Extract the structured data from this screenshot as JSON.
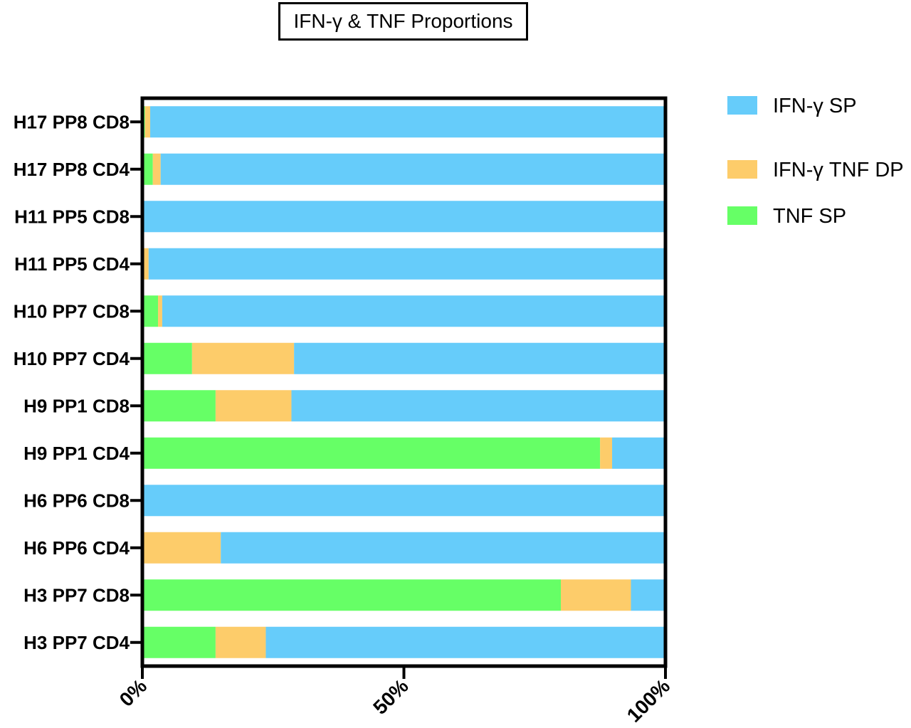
{
  "chart_data": {
    "type": "bar",
    "orientation": "horizontal",
    "stacked": true,
    "title": "IFN-γ & TNF Proportions",
    "categories": [
      "H17 PP8 CD8",
      "H17 PP8 CD4",
      "H11 PP5 CD8",
      "H11 PP5 CD4",
      "H10 PP7 CD8",
      "H10 PP7 CD4",
      "H9 PP1 CD8",
      "H9 PP1 CD4",
      "H6 PP6 CD8",
      "H6 PP6 CD4",
      "H3 PP7 CD8",
      "H3 PP7 CD4"
    ],
    "series": [
      {
        "name": "TNF SP",
        "color": "#66ff66",
        "values": [
          0.5,
          2,
          0,
          0,
          3,
          9.5,
          14,
          87.5,
          0,
          0,
          80,
          14
        ]
      },
      {
        "name": "IFN-γ TNF DP",
        "color": "#fdcc6a",
        "values": [
          1,
          1.5,
          0,
          1.2,
          0.8,
          19.5,
          14.5,
          2.3,
          0.3,
          15,
          13.4,
          9.6
        ]
      },
      {
        "name": "IFN-γ SP",
        "color": "#66ccfa",
        "values": [
          98.5,
          96.5,
          100,
          98.8,
          96.2,
          71,
          71.5,
          10.2,
          99.7,
          85,
          6.6,
          76.4
        ]
      }
    ],
    "legend_order": [
      "IFN-γ SP",
      "IFN-γ TNF DP",
      "TNF SP"
    ],
    "x_ticks": [
      "0%",
      "50%",
      "100%"
    ],
    "xlim": [
      0,
      100
    ],
    "grid": false,
    "legend_position": "right"
  }
}
